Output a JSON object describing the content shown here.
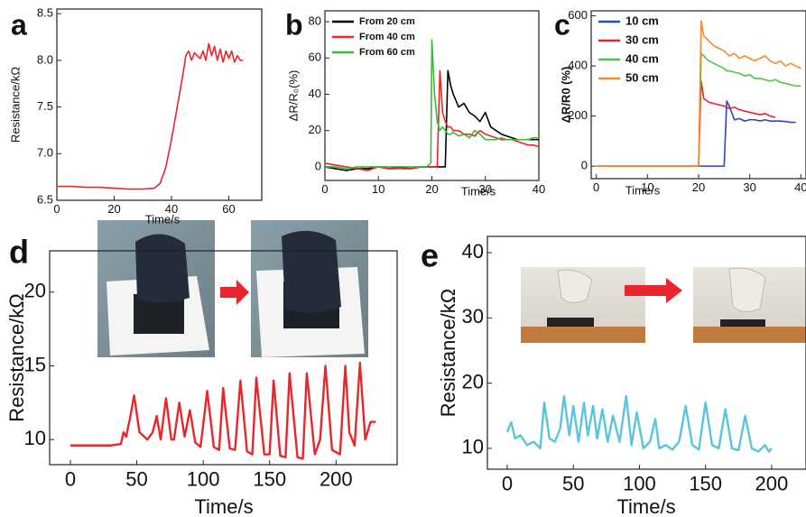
{
  "chart_data": [
    {
      "type": "line",
      "panel_label": "a",
      "xlabel": "Time/s",
      "ylabel": "Resistance/kΩ",
      "color": "#e8262b",
      "x": [
        0,
        5,
        10,
        15,
        20,
        25,
        30,
        34,
        36,
        38,
        40,
        42,
        44,
        45,
        46,
        47,
        48,
        50,
        51,
        52,
        53,
        54,
        55,
        56,
        57,
        58,
        59,
        60,
        61,
        62,
        63,
        64,
        65
      ],
      "values": [
        6.65,
        6.65,
        6.64,
        6.64,
        6.63,
        6.62,
        6.62,
        6.63,
        6.68,
        6.85,
        7.15,
        7.5,
        7.85,
        8.05,
        8.1,
        8.0,
        8.08,
        8.02,
        8.1,
        8.0,
        8.18,
        8.05,
        8.15,
        8.0,
        8.12,
        7.98,
        8.1,
        8.02,
        8.1,
        7.98,
        8.05,
        8.0,
        8.0
      ],
      "xlim": [
        0,
        71.5
      ],
      "ylim": [
        6.5,
        8.55
      ],
      "xticks": [
        0,
        20,
        40,
        60
      ],
      "yticks": [
        6.5,
        {
          "value": 7,
          "label": "7.0"
        },
        7.5,
        {
          "value": 8,
          "label": "8.0"
        },
        8.5
      ],
      "grid": false
    },
    {
      "type": "line",
      "panel_label": "b",
      "xlabel": "Time/s",
      "ylabel": "ΔR/R₀(%)",
      "legend": "upper left",
      "x": [
        0,
        2,
        4,
        6,
        8,
        10,
        12,
        14,
        16,
        18,
        19,
        19.8,
        20,
        20.5,
        21,
        21.5,
        22,
        22.5,
        23,
        23.5,
        24,
        25,
        26,
        27,
        28,
        29,
        30,
        31,
        32,
        33,
        34,
        35,
        36,
        37,
        38,
        39,
        40
      ],
      "series": [
        {
          "name": "From 20 cm",
          "color": "#000000",
          "values": [
            0,
            -1,
            -2,
            -1,
            -1,
            0,
            -1,
            0,
            -1,
            0,
            0,
            0,
            0,
            0,
            0,
            0,
            0,
            0,
            53,
            45,
            40,
            33,
            35,
            30,
            28,
            25,
            30,
            22,
            20,
            18,
            17,
            16,
            15,
            15,
            15,
            15,
            15
          ]
        },
        {
          "name": "From 40 cm",
          "color": "#e8262b",
          "values": [
            2,
            1,
            0,
            -1,
            -2,
            0,
            -1,
            -1,
            -1,
            0,
            0,
            0,
            0,
            0,
            0,
            53,
            30,
            25,
            22,
            22,
            20,
            20,
            18,
            18,
            17,
            20,
            18,
            17,
            16,
            15,
            15,
            15,
            14,
            13,
            12,
            12,
            11
          ]
        },
        {
          "name": "From 60 cm",
          "color": "#3cb83c",
          "values": [
            0,
            0,
            -1,
            0,
            0,
            0,
            0,
            0,
            0,
            0,
            0,
            2,
            70,
            40,
            25,
            20,
            22,
            20,
            18,
            18,
            19,
            17,
            18,
            16,
            20,
            18,
            15,
            15,
            15,
            16,
            15,
            15,
            15,
            15,
            15,
            16,
            16
          ]
        }
      ],
      "xlim": [
        0,
        40
      ],
      "ylim": [
        -7.5,
        86
      ],
      "xticks": [
        0,
        10,
        20,
        30,
        40
      ],
      "yticks": [
        0,
        20,
        40,
        60,
        80
      ],
      "grid": false
    },
    {
      "type": "line",
      "panel_label": "c",
      "xlabel": "Time/s",
      "ylabel": "ΔR/R0 (%)",
      "legend": "upper left",
      "x": [
        0,
        5,
        10,
        15,
        20,
        20.5,
        21,
        22,
        23,
        24,
        25,
        25.5,
        26,
        27,
        28,
        29,
        30,
        31,
        32,
        33,
        34,
        35,
        36,
        37,
        38,
        39,
        40
      ],
      "series": [
        {
          "name": "10 cm",
          "color": "#2b46b8",
          "values": [
            0,
            0,
            0,
            0,
            0,
            0,
            0,
            0,
            0,
            0,
            0,
            260,
            240,
            185,
            190,
            180,
            185,
            185,
            180,
            185,
            180,
            180,
            180,
            178,
            175,
            175,
            null
          ]
        },
        {
          "name": "30 cm",
          "color": "#e8262b",
          "values": [
            0,
            0,
            0,
            0,
            0,
            340,
            270,
            255,
            250,
            245,
            240,
            235,
            230,
            235,
            225,
            220,
            215,
            210,
            205,
            210,
            200,
            195,
            null,
            null,
            null,
            null,
            null
          ]
        },
        {
          "name": "40 cm",
          "color": "#4cc24c",
          "values": [
            0,
            0,
            0,
            0,
            0,
            450,
            440,
            420,
            410,
            400,
            390,
            380,
            380,
            375,
            370,
            360,
            365,
            350,
            350,
            345,
            340,
            345,
            335,
            330,
            325,
            320,
            320
          ]
        },
        {
          "name": "50 cm",
          "color": "#f7892a",
          "values": [
            0,
            0,
            0,
            0,
            0,
            580,
            520,
            500,
            480,
            470,
            460,
            450,
            440,
            450,
            430,
            440,
            430,
            420,
            430,
            440,
            420,
            410,
            420,
            400,
            410,
            400,
            390
          ]
        }
      ],
      "xlim": [
        -1,
        41
      ],
      "ylim": [
        -50,
        620
      ],
      "xticks": [
        0,
        10,
        20,
        30,
        40
      ],
      "yticks": [
        0,
        200,
        400,
        600
      ],
      "grid": false
    },
    {
      "type": "line",
      "panel_label": "d",
      "xlabel": "Time/s",
      "ylabel": "Resistance/kΩ",
      "color": "#e8262b",
      "x": [
        0,
        10,
        20,
        30,
        38,
        40,
        42,
        45,
        48,
        52,
        58,
        62,
        65,
        68,
        72,
        76,
        78,
        82,
        86,
        90,
        94,
        98,
        103,
        108,
        112,
        115,
        120,
        124,
        128,
        133,
        137,
        140,
        146,
        150,
        153,
        158,
        162,
        165,
        171,
        175,
        178,
        184,
        188,
        192,
        197,
        203,
        207,
        210,
        214,
        218,
        222,
        226,
        230
      ],
      "values": [
        9.6,
        9.6,
        9.6,
        9.6,
        9.7,
        10.5,
        10.2,
        11.5,
        13.0,
        10.5,
        10.0,
        10.5,
        11.6,
        10.0,
        12.8,
        10.0,
        10.0,
        12.5,
        10.2,
        12.0,
        9.8,
        9.5,
        13.3,
        9.5,
        9.3,
        13.5,
        9.4,
        9.3,
        14.0,
        9.2,
        9.0,
        14.2,
        9.0,
        9.0,
        14.0,
        8.9,
        8.8,
        14.5,
        8.8,
        8.7,
        14.5,
        9.0,
        10.0,
        15.0,
        9.3,
        9.0,
        15.0,
        10.5,
        9.6,
        15.2,
        10.0,
        11.2,
        11.2
      ],
      "xlim": [
        -15.6,
        246
      ],
      "ylim": [
        8.3,
        22.8
      ],
      "xticks": [
        0,
        50,
        100,
        150,
        200
      ],
      "yticks": [
        10,
        15,
        20
      ],
      "grid": false
    },
    {
      "type": "line",
      "panel_label": "e",
      "xlabel": "Time/s",
      "ylabel": "Resistance/kΩ",
      "color": "#5bc3dc",
      "x": [
        0,
        3,
        6,
        10,
        15,
        20,
        25,
        28,
        32,
        36,
        40,
        43,
        47,
        50,
        54,
        58,
        61,
        65,
        68,
        72,
        76,
        80,
        85,
        90,
        94,
        98,
        103,
        108,
        112,
        115,
        120,
        125,
        130,
        135,
        140,
        145,
        150,
        155,
        160,
        165,
        170,
        175,
        180,
        185,
        190,
        195,
        198,
        200
      ],
      "values": [
        12.5,
        14,
        11.5,
        12,
        10.5,
        11,
        10,
        17,
        11.5,
        11,
        13,
        18,
        12,
        16.5,
        11,
        17,
        12,
        16.5,
        11.5,
        16,
        11,
        15,
        11,
        18,
        10.5,
        15.5,
        10,
        11,
        14.5,
        10,
        10.5,
        9.8,
        11,
        16.5,
        10.5,
        9.8,
        17,
        10.5,
        10,
        16,
        10,
        9.7,
        15,
        10,
        9.5,
        10.5,
        9.5,
        10
      ],
      "xlim": [
        -15,
        226
      ],
      "ylim": [
        6.8,
        42.5
      ],
      "xticks": [
        0,
        50,
        100,
        150,
        200
      ],
      "yticks": [
        10,
        20,
        30,
        40
      ],
      "grid": false
    }
  ]
}
